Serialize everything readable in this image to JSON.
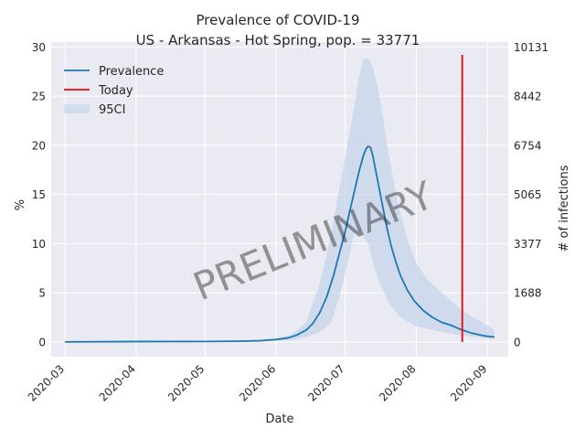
{
  "chart_data": {
    "type": "line",
    "title": "Prevalence of COVID-19",
    "subtitle": "US - Arkansas - Hot Spring, pop. = 33771",
    "xlabel": "Date",
    "ylabel": "%",
    "ylabel_right": "# of infections",
    "watermark": "PRELIMINARY",
    "ylim": [
      -1.5,
      30.5
    ],
    "xlim": [
      "2020-02-24",
      "2020-09-10"
    ],
    "x_ticks": [
      "2020-03",
      "2020-04",
      "2020-05",
      "2020-06",
      "2020-07",
      "2020-08",
      "2020-09"
    ],
    "y_ticks": [
      "0",
      "5",
      "10",
      "15",
      "20",
      "25",
      "30"
    ],
    "y_right_ticks": [
      {
        "label": "0",
        "pct": 0
      },
      {
        "label": "1688",
        "pct": 5
      },
      {
        "label": "3377",
        "pct": 10
      },
      {
        "label": "5065",
        "pct": 15
      },
      {
        "label": "6754",
        "pct": 20
      },
      {
        "label": "8442",
        "pct": 25
      },
      {
        "label": "10131",
        "pct": 30
      }
    ],
    "grid": true,
    "legend_position": "top-left",
    "legend": [
      "Prevalence",
      "Today",
      "95CI"
    ],
    "colors": {
      "prevalence": "#1f77b4",
      "today": "#ff0000",
      "ci": "#c6d6ea",
      "background": "#eaeaf2",
      "grid": "#ffffff"
    },
    "today": {
      "date": "2020-08-21",
      "y_top": 29.2,
      "y_bottom": 0
    },
    "series": [
      {
        "name": "Prevalence",
        "points": [
          [
            "2020-03-01",
            0.0
          ],
          [
            "2020-03-15",
            0.02
          ],
          [
            "2020-04-01",
            0.04
          ],
          [
            "2020-05-01",
            0.05
          ],
          [
            "2020-05-15",
            0.07
          ],
          [
            "2020-05-25",
            0.12
          ],
          [
            "2020-06-01",
            0.25
          ],
          [
            "2020-06-06",
            0.4
          ],
          [
            "2020-06-10",
            0.7
          ],
          [
            "2020-06-14",
            1.2
          ],
          [
            "2020-06-17",
            1.9
          ],
          [
            "2020-06-20",
            3.0
          ],
          [
            "2020-06-23",
            4.6
          ],
          [
            "2020-06-26",
            6.8
          ],
          [
            "2020-06-28",
            8.6
          ],
          [
            "2020-07-01",
            11.2
          ],
          [
            "2020-07-03",
            13.3
          ],
          [
            "2020-07-05",
            15.3
          ],
          [
            "2020-07-07",
            17.3
          ],
          [
            "2020-07-09",
            19.0
          ],
          [
            "2020-07-10",
            19.6
          ],
          [
            "2020-07-11",
            19.9
          ],
          [
            "2020-07-12",
            19.8
          ],
          [
            "2020-07-13",
            19.0
          ],
          [
            "2020-07-15",
            16.6
          ],
          [
            "2020-07-17",
            14.2
          ],
          [
            "2020-07-19",
            11.8
          ],
          [
            "2020-07-21",
            9.8
          ],
          [
            "2020-07-23",
            8.2
          ],
          [
            "2020-07-25",
            6.8
          ],
          [
            "2020-07-28",
            5.3
          ],
          [
            "2020-07-31",
            4.2
          ],
          [
            "2020-08-04",
            3.2
          ],
          [
            "2020-08-08",
            2.5
          ],
          [
            "2020-08-12",
            2.0
          ],
          [
            "2020-08-16",
            1.7
          ],
          [
            "2020-08-20",
            1.3
          ],
          [
            "2020-08-25",
            0.9
          ],
          [
            "2020-08-31",
            0.6
          ],
          [
            "2020-09-04",
            0.5
          ]
        ]
      },
      {
        "name": "95CI",
        "upper": [
          [
            "2020-06-01",
            0.3
          ],
          [
            "2020-06-08",
            0.8
          ],
          [
            "2020-06-14",
            2.0
          ],
          [
            "2020-06-20",
            6.0
          ],
          [
            "2020-06-24",
            10.0
          ],
          [
            "2020-06-28",
            15.0
          ],
          [
            "2020-07-02",
            20.0
          ],
          [
            "2020-07-05",
            24.0
          ],
          [
            "2020-07-07",
            27.0
          ],
          [
            "2020-07-09",
            28.7
          ],
          [
            "2020-07-11",
            28.9
          ],
          [
            "2020-07-13",
            28.0
          ],
          [
            "2020-07-16",
            25.0
          ],
          [
            "2020-07-20",
            19.0
          ],
          [
            "2020-07-24",
            14.0
          ],
          [
            "2020-07-28",
            10.5
          ],
          [
            "2020-08-01",
            8.0
          ],
          [
            "2020-08-06",
            6.3
          ],
          [
            "2020-08-12",
            5.0
          ],
          [
            "2020-08-18",
            3.8
          ],
          [
            "2020-08-25",
            2.6
          ],
          [
            "2020-08-31",
            1.8
          ],
          [
            "2020-09-04",
            1.2
          ]
        ],
        "lower": [
          [
            "2020-06-01",
            0.1
          ],
          [
            "2020-06-08",
            0.2
          ],
          [
            "2020-06-14",
            0.5
          ],
          [
            "2020-06-20",
            1.0
          ],
          [
            "2020-06-25",
            2.0
          ],
          [
            "2020-06-29",
            5.0
          ],
          [
            "2020-07-02",
            8.0
          ],
          [
            "2020-07-05",
            11.0
          ],
          [
            "2020-07-08",
            11.0
          ],
          [
            "2020-07-11",
            10.0
          ],
          [
            "2020-07-15",
            6.5
          ],
          [
            "2020-07-20",
            4.0
          ],
          [
            "2020-07-25",
            2.5
          ],
          [
            "2020-08-01",
            1.6
          ],
          [
            "2020-08-10",
            1.1
          ],
          [
            "2020-08-20",
            0.7
          ],
          [
            "2020-08-31",
            0.35
          ],
          [
            "2020-09-04",
            0.3
          ]
        ]
      }
    ]
  }
}
